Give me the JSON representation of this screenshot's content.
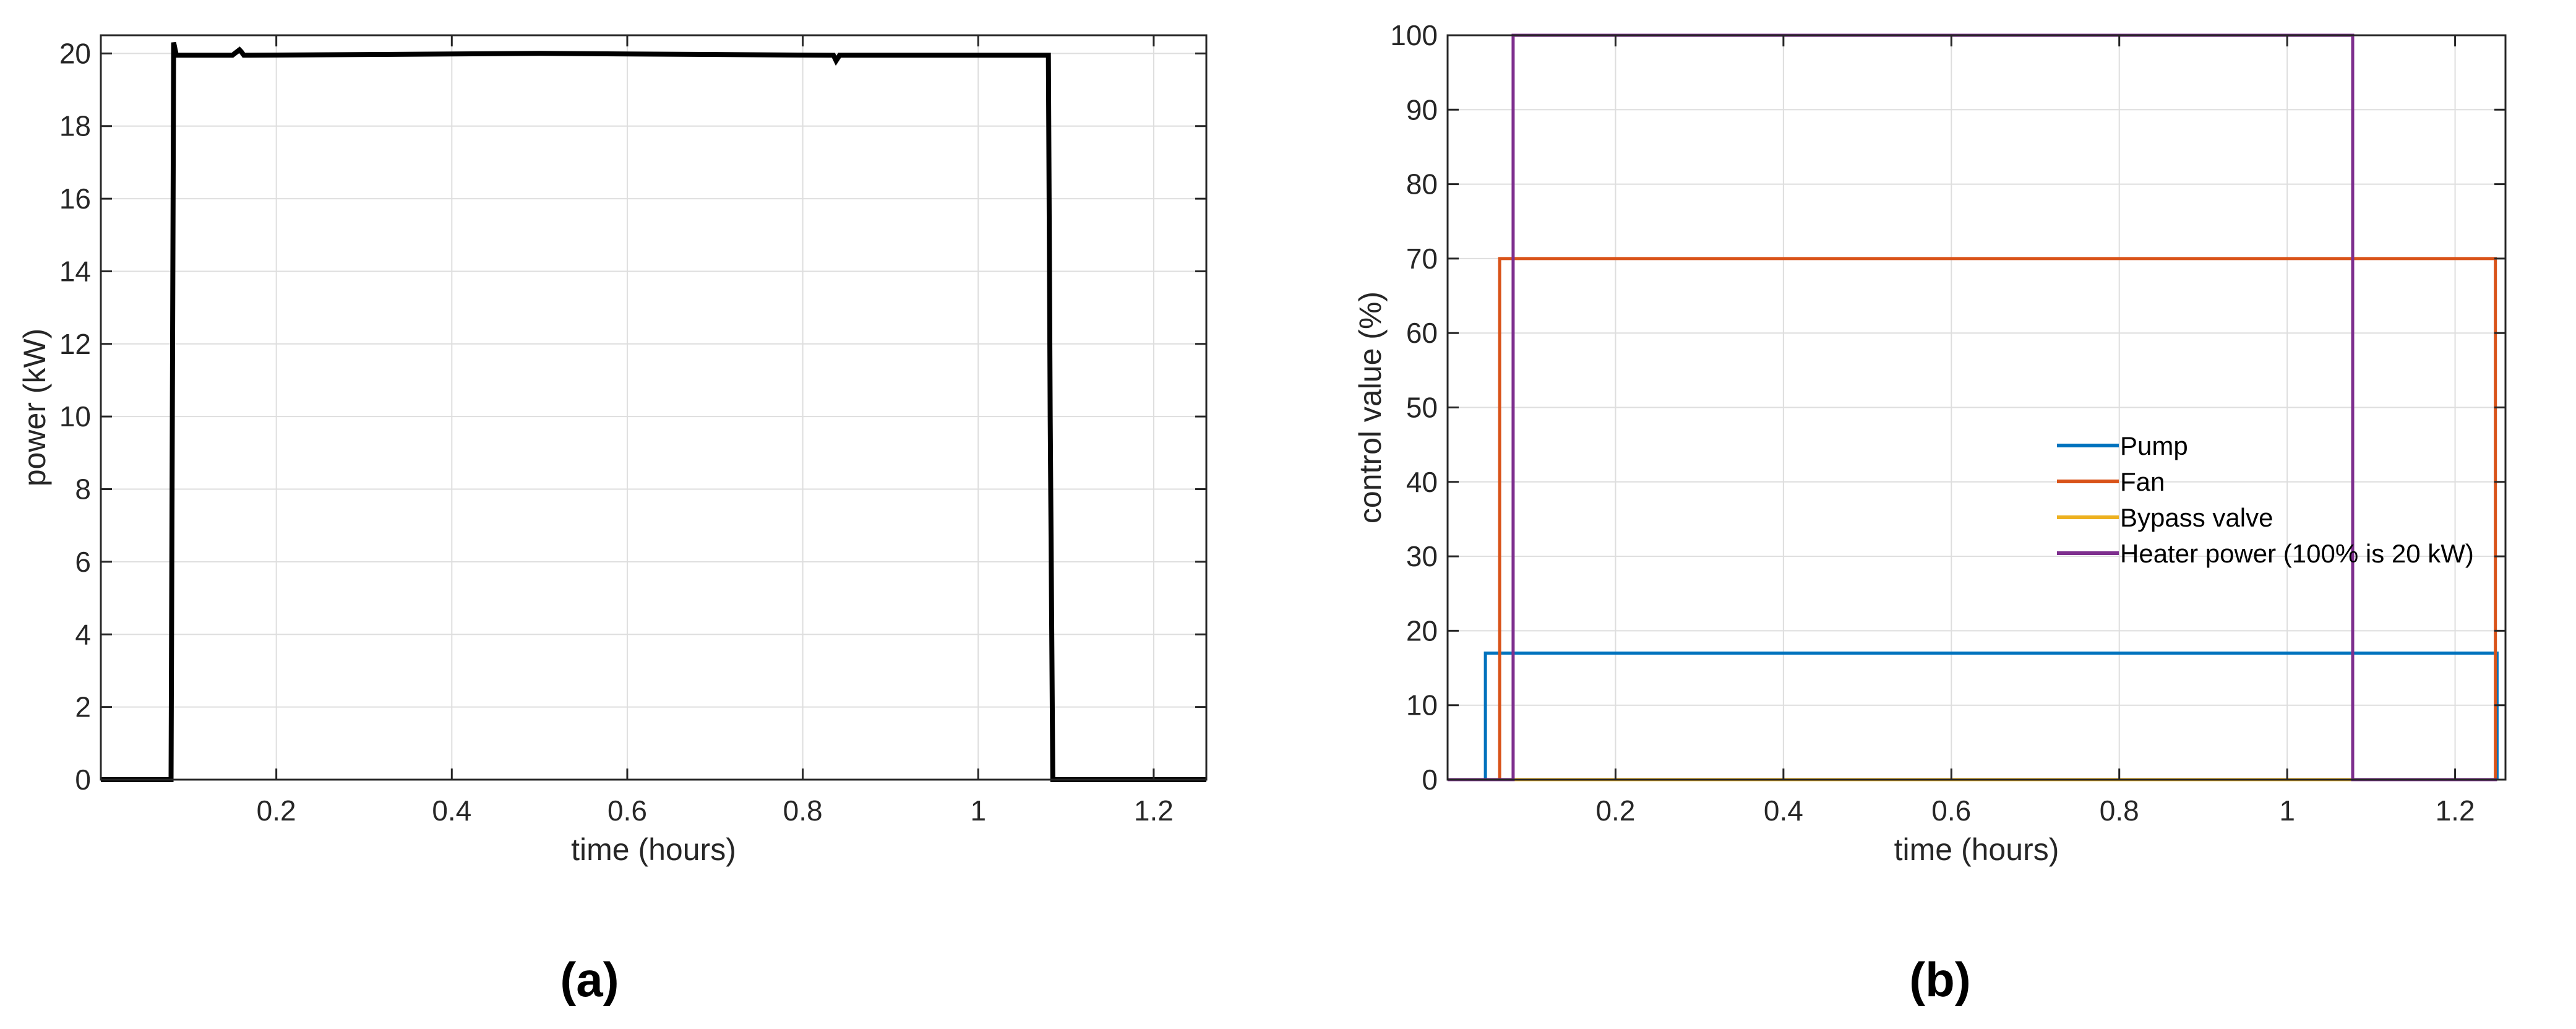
{
  "chart_data": [
    {
      "type": "line",
      "panel_label": "(a)",
      "title": "",
      "xlabel": "time (hours)",
      "ylabel": "power (kW)",
      "xlim": [
        0,
        1.26
      ],
      "ylim": [
        0,
        20.5
      ],
      "xticks": [
        0.2,
        0.4,
        0.6,
        0.8,
        1,
        1.2
      ],
      "xtick_labels": [
        "0.2",
        "0.4",
        "0.6",
        "0.8",
        "1",
        "1.2"
      ],
      "yticks": [
        0,
        2,
        4,
        6,
        8,
        10,
        12,
        14,
        16,
        18,
        20
      ],
      "ytick_labels": [
        "0",
        "2",
        "4",
        "6",
        "8",
        "10",
        "12",
        "14",
        "16",
        "18",
        "20"
      ],
      "grid": true,
      "series": [
        {
          "color": "#000000",
          "x": [
            0,
            0.08,
            0.083,
            0.086,
            0.09,
            0.15,
            0.158,
            0.16,
            0.163,
            0.17,
            0.5,
            0.835,
            0.838,
            0.842,
            0.85,
            1.08,
            1.082,
            1.085,
            1.26
          ],
          "y": [
            0,
            0,
            20.3,
            19.95,
            19.95,
            19.95,
            20.1,
            20.05,
            19.95,
            19.95,
            20.0,
            19.95,
            19.8,
            19.95,
            19.95,
            19.95,
            10,
            0,
            0
          ]
        }
      ]
    },
    {
      "type": "line",
      "panel_label": "(b)",
      "title": "",
      "xlabel": "time (hours)",
      "ylabel": "control value (%)",
      "xlim": [
        0,
        1.26
      ],
      "ylim": [
        0,
        100
      ],
      "xticks": [
        0.2,
        0.4,
        0.6,
        0.8,
        1,
        1.2
      ],
      "xtick_labels": [
        "0.2",
        "0.4",
        "0.6",
        "0.8",
        "1",
        "1.2"
      ],
      "yticks": [
        0,
        10,
        20,
        30,
        40,
        50,
        60,
        70,
        80,
        90,
        100
      ],
      "ytick_labels": [
        "0",
        "10",
        "20",
        "30",
        "40",
        "50",
        "60",
        "70",
        "80",
        "90",
        "100"
      ],
      "grid": true,
      "legend_position": "center-right",
      "series": [
        {
          "name": "Pump",
          "color": "#0072BD",
          "x": [
            0,
            0.045,
            0.045,
            1.25,
            1.25
          ],
          "y": [
            0,
            0,
            17,
            17,
            0
          ]
        },
        {
          "name": "Fan",
          "color": "#D95319",
          "x": [
            0,
            0.062,
            0.062,
            1.248,
            1.248
          ],
          "y": [
            0,
            0,
            70,
            70,
            0
          ]
        },
        {
          "name": "Bypass valve",
          "color": "#EDB120",
          "x": [
            0,
            1.25
          ],
          "y": [
            0,
            0
          ]
        },
        {
          "name": "Heater power (100% is 20 kW)",
          "color": "#7E2F8E",
          "x": [
            0,
            0.078,
            0.078,
            1.078,
            1.078,
            1.25
          ],
          "y": [
            0,
            0,
            100,
            100,
            0,
            0
          ]
        }
      ]
    }
  ]
}
